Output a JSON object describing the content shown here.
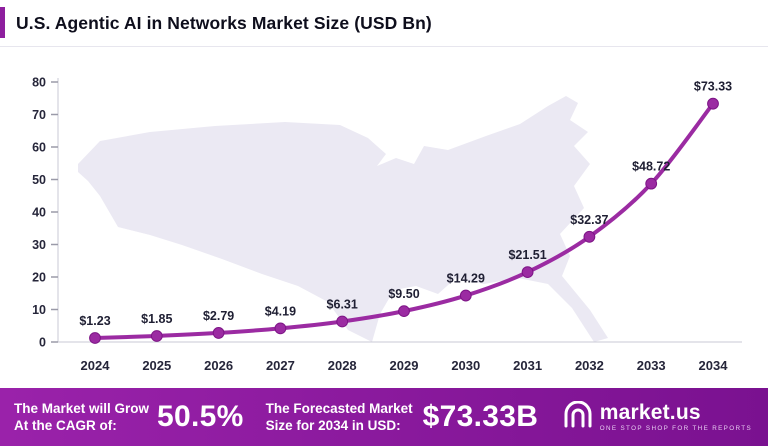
{
  "title": "U.S. Agentic AI in Networks Market Size (USD Bn)",
  "chart_data": {
    "type": "line",
    "title": "U.S. Agentic AI in Networks Market Size (USD Bn)",
    "categories": [
      "2024",
      "2025",
      "2026",
      "2027",
      "2028",
      "2029",
      "2030",
      "2031",
      "2032",
      "2033",
      "2034"
    ],
    "values": [
      1.23,
      1.85,
      2.79,
      4.19,
      6.31,
      9.5,
      14.29,
      21.51,
      32.37,
      48.72,
      73.33
    ],
    "point_labels": [
      "$1.23",
      "$1.85",
      "$2.79",
      "$4.19",
      "$6.31",
      "$9.50",
      "$14.29",
      "$21.51",
      "$32.37",
      "$48.72",
      "$73.33"
    ],
    "y_ticks": [
      0,
      10,
      20,
      30,
      40,
      50,
      60,
      70,
      80
    ],
    "ylim": [
      0,
      80
    ],
    "xlabel": "",
    "ylabel": "",
    "grid": false,
    "legend": false,
    "line_color": "#9B2BA2",
    "marker_color": "#9B2BA2"
  },
  "colors": {
    "accent": "#8E1F9E",
    "line": "#9B2BA2",
    "marker_stroke": "#7D1586",
    "map_fill": "#ebe9f3",
    "footer_gradient_start": "#9A22AA",
    "footer_gradient_end": "#7A1190"
  },
  "footer": {
    "cagr_label_line1": "The Market will Grow",
    "cagr_label_line2": "At the CAGR of:",
    "cagr_value": "50.5%",
    "forecast_label_line1": "The Forecasted Market",
    "forecast_label_line2": "Size for 2034 in USD:",
    "forecast_value": "$73.33B",
    "logo_text": "market.us",
    "logo_tagline": "ONE STOP SHOP FOR THE REPORTS"
  }
}
